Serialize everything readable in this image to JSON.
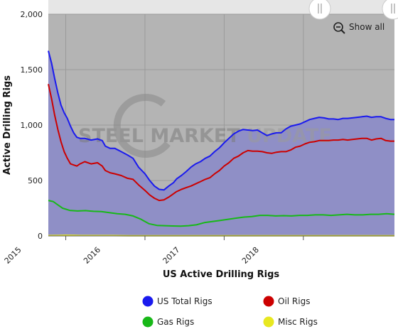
{
  "chart_data": {
    "type": "area",
    "title": "",
    "xlabel": "US Active Drilling Rigs",
    "ylabel": "Active Drilling Rigs",
    "ylim": [
      0,
      2000
    ],
    "xlim": [
      2014.78,
      2019.15
    ],
    "y_ticks": [
      "0",
      "500",
      "1,000",
      "1,500",
      "2,000"
    ],
    "y_tick_values": [
      0,
      500,
      1000,
      1500,
      2000
    ],
    "x_ticks": [
      "2015",
      "2016",
      "2017",
      "2018"
    ],
    "x_tick_values": [
      2015,
      2016,
      2017,
      2018
    ],
    "grid": true,
    "legend_position": "bottom",
    "series": [
      {
        "name": "US Total Rigs",
        "color": "#1a1aee",
        "fill": "#8f8fc6",
        "x": [
          2014.78,
          2014.82,
          2014.86,
          2014.9,
          2014.94,
          2014.98,
          2015.02,
          2015.06,
          2015.1,
          2015.14,
          2015.18,
          2015.24,
          2015.32,
          2015.4,
          2015.46,
          2015.5,
          2015.56,
          2015.62,
          2015.7,
          2015.78,
          2015.85,
          2015.92,
          2016.0,
          2016.06,
          2016.12,
          2016.18,
          2016.24,
          2016.3,
          2016.36,
          2016.4,
          2016.46,
          2016.52,
          2016.58,
          2016.64,
          2016.7,
          2016.76,
          2016.82,
          2016.88,
          2016.94,
          2017.0,
          2017.06,
          2017.12,
          2017.18,
          2017.24,
          2017.3,
          2017.36,
          2017.42,
          2017.48,
          2017.54,
          2017.6,
          2017.66,
          2017.72,
          2017.78,
          2017.84,
          2017.9,
          2017.96,
          2018.02,
          2018.08,
          2018.14,
          2018.2,
          2018.26,
          2018.32,
          2018.38,
          2018.44,
          2018.5,
          2018.56,
          2018.62,
          2018.68,
          2018.74,
          2018.8,
          2018.86,
          2018.92,
          2018.98,
          2019.04,
          2019.1,
          2019.15
        ],
        "y": [
          1670,
          1560,
          1420,
          1290,
          1180,
          1110,
          1060,
          990,
          930,
          890,
          880,
          880,
          865,
          875,
          860,
          810,
          790,
          790,
          760,
          730,
          700,
          620,
          560,
          500,
          450,
          420,
          415,
          450,
          480,
          515,
          545,
          580,
          620,
          650,
          670,
          700,
          720,
          760,
          795,
          840,
          880,
          920,
          945,
          960,
          955,
          950,
          955,
          930,
          905,
          920,
          930,
          930,
          965,
          990,
          1000,
          1010,
          1030,
          1050,
          1060,
          1070,
          1065,
          1055,
          1055,
          1050,
          1060,
          1060,
          1065,
          1070,
          1075,
          1080,
          1070,
          1075,
          1075,
          1060,
          1050,
          1050
        ]
      },
      {
        "name": "Oil Rigs",
        "color": "#cc0000",
        "fill": "",
        "x": [
          2014.78,
          2014.82,
          2014.86,
          2014.9,
          2014.94,
          2014.98,
          2015.02,
          2015.06,
          2015.1,
          2015.14,
          2015.18,
          2015.24,
          2015.32,
          2015.4,
          2015.46,
          2015.5,
          2015.56,
          2015.62,
          2015.7,
          2015.78,
          2015.85,
          2015.92,
          2016.0,
          2016.06,
          2016.12,
          2016.18,
          2016.24,
          2016.3,
          2016.36,
          2016.4,
          2016.46,
          2016.52,
          2016.58,
          2016.64,
          2016.7,
          2016.76,
          2016.82,
          2016.88,
          2016.94,
          2017.0,
          2017.06,
          2017.12,
          2017.18,
          2017.24,
          2017.3,
          2017.36,
          2017.42,
          2017.48,
          2017.54,
          2017.6,
          2017.66,
          2017.72,
          2017.78,
          2017.84,
          2017.9,
          2017.96,
          2018.02,
          2018.08,
          2018.14,
          2018.2,
          2018.26,
          2018.32,
          2018.38,
          2018.44,
          2018.5,
          2018.56,
          2018.62,
          2018.68,
          2018.74,
          2018.8,
          2018.86,
          2018.92,
          2018.98,
          2019.04,
          2019.1,
          2019.15
        ],
        "y": [
          1370,
          1240,
          1090,
          960,
          850,
          760,
          700,
          650,
          640,
          630,
          650,
          670,
          650,
          660,
          630,
          590,
          570,
          560,
          545,
          520,
          510,
          460,
          410,
          370,
          340,
          320,
          325,
          350,
          380,
          400,
          420,
          435,
          450,
          470,
          490,
          510,
          525,
          560,
          590,
          630,
          660,
          700,
          720,
          750,
          770,
          765,
          765,
          760,
          750,
          745,
          755,
          760,
          760,
          775,
          800,
          810,
          830,
          845,
          850,
          860,
          860,
          860,
          865,
          865,
          870,
          865,
          870,
          875,
          880,
          880,
          865,
          875,
          880,
          860,
          855,
          855
        ]
      },
      {
        "name": "Gas Rigs",
        "color": "#18b818",
        "fill": "",
        "x": [
          2014.78,
          2014.84,
          2014.9,
          2014.96,
          2015.05,
          2015.15,
          2015.25,
          2015.35,
          2015.45,
          2015.55,
          2015.65,
          2015.75,
          2015.85,
          2015.95,
          2016.05,
          2016.15,
          2016.25,
          2016.35,
          2016.45,
          2016.55,
          2016.65,
          2016.75,
          2016.85,
          2016.95,
          2017.05,
          2017.15,
          2017.25,
          2017.35,
          2017.45,
          2017.55,
          2017.65,
          2017.75,
          2017.85,
          2017.95,
          2018.05,
          2018.15,
          2018.25,
          2018.35,
          2018.45,
          2018.55,
          2018.65,
          2018.75,
          2018.85,
          2018.95,
          2019.05,
          2019.15
        ],
        "y": [
          320,
          310,
          280,
          250,
          230,
          225,
          228,
          222,
          220,
          210,
          200,
          195,
          180,
          150,
          110,
          95,
          92,
          90,
          88,
          92,
          100,
          120,
          130,
          140,
          150,
          160,
          170,
          175,
          185,
          185,
          180,
          183,
          180,
          185,
          185,
          190,
          190,
          185,
          190,
          195,
          190,
          190,
          195,
          195,
          200,
          195
        ]
      },
      {
        "name": "Misc Rigs",
        "color": "#e8e820",
        "fill": "",
        "x": [
          2014.78,
          2014.9,
          2015.0,
          2015.1,
          2015.2,
          2015.4,
          2015.6,
          2015.8,
          2016.0,
          2016.4,
          2016.8,
          2017.2,
          2017.6,
          2018.0,
          2018.4,
          2018.8,
          2019.15
        ],
        "y": [
          3,
          4,
          6,
          5,
          3,
          3,
          3,
          2,
          2,
          1,
          1,
          1,
          1,
          2,
          2,
          2,
          2
        ]
      }
    ]
  },
  "controls": {
    "show_all_label": "Show all",
    "zoom_icon": "zoom-out-icon"
  },
  "watermark": {
    "part1": "STEEL MARKET",
    "part2": " UPDATE"
  },
  "colors": {
    "plot_background": "#b4b4b4",
    "navigator_band": "#e6e6e6",
    "grid_line": "#9a9a9a"
  }
}
